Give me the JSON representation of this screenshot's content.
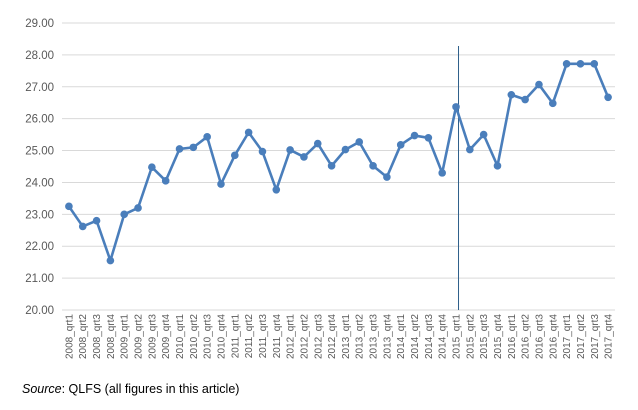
{
  "chart_data": {
    "type": "line",
    "title": "",
    "xlabel": "",
    "ylabel": "",
    "ylim": [
      20,
      29
    ],
    "yticks": [
      "20.00",
      "21.00",
      "22.00",
      "23.00",
      "24.00",
      "25.00",
      "26.00",
      "27.00",
      "28.00",
      "29.00"
    ],
    "grid": true,
    "legend": "none",
    "series_color": "#4a7ebb",
    "reference_line_x": "2015_qrt1",
    "categories": [
      "2008_qrt1",
      "2008_qrt2",
      "2008_qrt3",
      "2008_qrt4",
      "2009_qrt1",
      "2009_qrt2",
      "2009_qrt3",
      "2009_qrt4",
      "2010_qrt1",
      "2010_qrt2",
      "2010_qrt3",
      "2010_qrt4",
      "2011_qrt1",
      "2011_qrt2",
      "2011_qrt3",
      "2011_qrt4",
      "2012_qrt1",
      "2012_qrt2",
      "2012_qrt3",
      "2012_qrt4",
      "2013_qrt1",
      "2013_qrt2",
      "2013_qrt3",
      "2013_qrt4",
      "2014_qrt1",
      "2014_qrt2",
      "2014_qrt3",
      "2014_qrt4",
      "2015_qrt1",
      "2015_qrt2",
      "2015_qrt3",
      "2015_qrt4",
      "2016_qrt1",
      "2016_qrt2",
      "2016_qrt3",
      "2016_qrt4",
      "2017_qrt1",
      "2017_qrt2",
      "2017_qrt3",
      "2017_qrt4"
    ],
    "values": [
      23.25,
      22.62,
      22.8,
      21.55,
      23.0,
      23.2,
      24.48,
      24.05,
      25.05,
      25.1,
      25.43,
      23.95,
      24.85,
      25.57,
      24.97,
      23.77,
      25.02,
      24.8,
      25.22,
      24.52,
      25.03,
      25.27,
      24.52,
      24.17,
      25.18,
      25.47,
      25.4,
      24.3,
      26.37,
      25.03,
      25.5,
      24.52,
      26.75,
      26.6,
      27.07,
      26.48,
      27.72,
      27.72,
      27.72,
      26.67
    ]
  },
  "source": {
    "label": "Source",
    "text": ": QLFS (all figures in this article)"
  }
}
